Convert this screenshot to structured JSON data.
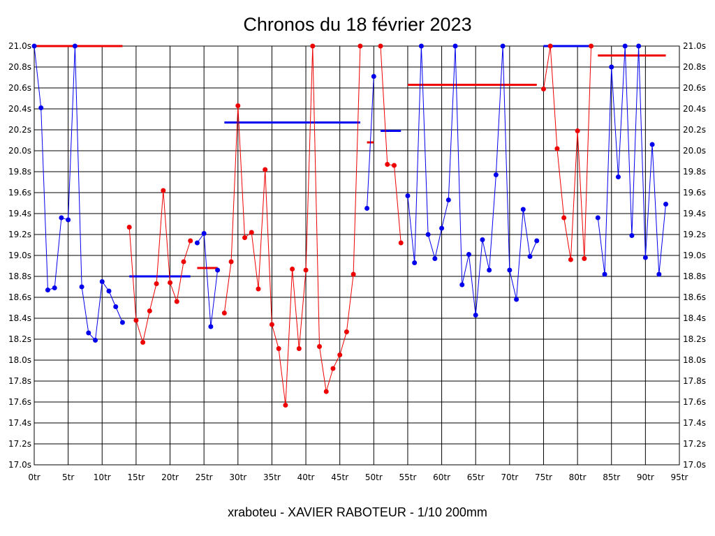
{
  "chart_data": {
    "type": "line",
    "title": "Chronos du 18 février 2023",
    "subtitle": "xraboteu - XAVIER RABOTEUR - 1/10 200mm",
    "xlabel": "",
    "ylabel": "",
    "xlim": [
      0,
      95
    ],
    "ylim": [
      17.0,
      21.0
    ],
    "grid": true,
    "x_ticks": [
      0,
      5,
      10,
      15,
      20,
      25,
      30,
      35,
      40,
      45,
      50,
      55,
      60,
      65,
      70,
      75,
      80,
      85,
      90,
      95
    ],
    "x_tick_labels": [
      "0tr",
      "5tr",
      "10tr",
      "15tr",
      "20tr",
      "25tr",
      "30tr",
      "35tr",
      "40tr",
      "45tr",
      "50tr",
      "55tr",
      "60tr",
      "65tr",
      "70tr",
      "75tr",
      "80tr",
      "85tr",
      "90tr",
      "95tr"
    ],
    "y_ticks": [
      17.0,
      17.2,
      17.4,
      17.6,
      17.8,
      18.0,
      18.2,
      18.4,
      18.6,
      18.8,
      19.0,
      19.2,
      19.4,
      19.6,
      19.8,
      20.0,
      20.2,
      20.4,
      20.6,
      20.8,
      21.0
    ],
    "y_tick_labels": [
      "17.0s",
      "17.2s",
      "17.4s",
      "17.6s",
      "17.8s",
      "18.0s",
      "18.2s",
      "18.4s",
      "18.6s",
      "18.8s",
      "19.0s",
      "19.2s",
      "19.4s",
      "19.6s",
      "19.8s",
      "20.0s",
      "20.2s",
      "20.4s",
      "20.6s",
      "20.8s",
      "21.0s"
    ],
    "series": [
      {
        "color": "#0000ee",
        "points": [
          [
            0,
            21.0
          ],
          [
            1,
            20.41
          ],
          [
            2,
            18.67
          ],
          [
            3,
            18.69
          ],
          [
            4,
            19.36
          ],
          [
            5,
            19.34
          ],
          [
            6,
            21.0
          ],
          [
            7,
            18.7
          ],
          [
            8,
            18.26
          ],
          [
            9,
            18.19
          ],
          [
            10,
            18.75
          ],
          [
            11,
            18.66
          ],
          [
            12,
            18.51
          ],
          [
            13,
            18.36
          ]
        ]
      },
      {
        "color": "#ee0000",
        "points": [
          [
            14,
            19.27
          ],
          [
            15,
            18.38
          ],
          [
            16,
            18.17
          ],
          [
            17,
            18.47
          ],
          [
            18,
            18.73
          ],
          [
            19,
            19.62
          ],
          [
            20,
            18.74
          ],
          [
            21,
            18.56
          ],
          [
            22,
            18.94
          ],
          [
            23,
            19.14
          ]
        ]
      },
      {
        "color": "#0000ee",
        "points": [
          [
            24,
            19.12
          ],
          [
            25,
            19.21
          ],
          [
            26,
            18.32
          ],
          [
            27,
            18.86
          ]
        ]
      },
      {
        "color": "#ee0000",
        "points": [
          [
            28,
            18.45
          ],
          [
            29,
            18.94
          ],
          [
            30,
            20.43
          ],
          [
            31,
            19.17
          ],
          [
            32,
            19.22
          ],
          [
            33,
            18.68
          ],
          [
            34,
            19.82
          ],
          [
            35,
            18.34
          ],
          [
            36,
            18.11
          ],
          [
            37,
            17.57
          ],
          [
            38,
            18.87
          ],
          [
            39,
            18.11
          ],
          [
            40,
            18.86
          ],
          [
            41,
            21.0
          ],
          [
            42,
            18.13
          ],
          [
            43,
            17.7
          ],
          [
            44,
            17.92
          ],
          [
            45,
            18.05
          ],
          [
            46,
            18.27
          ],
          [
            47,
            18.82
          ],
          [
            48,
            21.0
          ]
        ]
      },
      {
        "color": "#0000ee",
        "points": [
          [
            49,
            19.45
          ],
          [
            50,
            20.71
          ]
        ]
      },
      {
        "color": "#ee0000",
        "points": [
          [
            51,
            21.0
          ],
          [
            52,
            19.87
          ],
          [
            53,
            19.86
          ],
          [
            54,
            19.12
          ]
        ]
      },
      {
        "color": "#0000ee",
        "points": [
          [
            55,
            19.57
          ],
          [
            56,
            18.93
          ],
          [
            57,
            21.0
          ],
          [
            58,
            19.2
          ],
          [
            59,
            18.97
          ],
          [
            60,
            19.26
          ],
          [
            61,
            19.53
          ],
          [
            62,
            21.0
          ],
          [
            63,
            18.72
          ],
          [
            64,
            19.01
          ],
          [
            65,
            18.43
          ],
          [
            66,
            19.15
          ],
          [
            67,
            18.86
          ],
          [
            68,
            19.77
          ],
          [
            69,
            21.0
          ],
          [
            70,
            18.86
          ],
          [
            71,
            18.58
          ],
          [
            72,
            19.44
          ],
          [
            73,
            18.99
          ],
          [
            74,
            19.14
          ]
        ]
      },
      {
        "color": "#ee0000",
        "points": [
          [
            75,
            20.59
          ],
          [
            76,
            21.0
          ],
          [
            77,
            20.02
          ],
          [
            78,
            19.36
          ],
          [
            79,
            18.96
          ],
          [
            80,
            20.19
          ],
          [
            81,
            18.97
          ],
          [
            82,
            21.0
          ]
        ]
      },
      {
        "color": "#0000ee",
        "points": [
          [
            83,
            19.36
          ],
          [
            84,
            18.82
          ],
          [
            85,
            20.8
          ],
          [
            86,
            19.75
          ],
          [
            87,
            21.0
          ],
          [
            88,
            19.19
          ],
          [
            89,
            21.0
          ],
          [
            90,
            18.98
          ],
          [
            91,
            20.06
          ],
          [
            92,
            18.82
          ],
          [
            93,
            19.49
          ]
        ]
      }
    ],
    "averages": [
      {
        "color": "#ee0000",
        "x": [
          0,
          13
        ],
        "y": 21.0
      },
      {
        "color": "#0000ee",
        "x": [
          14,
          23
        ],
        "y": 18.8
      },
      {
        "color": "#ee0000",
        "x": [
          24,
          27
        ],
        "y": 18.88
      },
      {
        "color": "#0000ee",
        "x": [
          28,
          48
        ],
        "y": 20.27
      },
      {
        "color": "#ee0000",
        "x": [
          49,
          50
        ],
        "y": 20.08
      },
      {
        "color": "#0000ee",
        "x": [
          51,
          54
        ],
        "y": 20.19
      },
      {
        "color": "#ee0000",
        "x": [
          55,
          74
        ],
        "y": 20.63
      },
      {
        "color": "#0000ee",
        "x": [
          75,
          82
        ],
        "y": 21.0
      },
      {
        "color": "#ee0000",
        "x": [
          83,
          93
        ],
        "y": 20.91
      }
    ]
  }
}
